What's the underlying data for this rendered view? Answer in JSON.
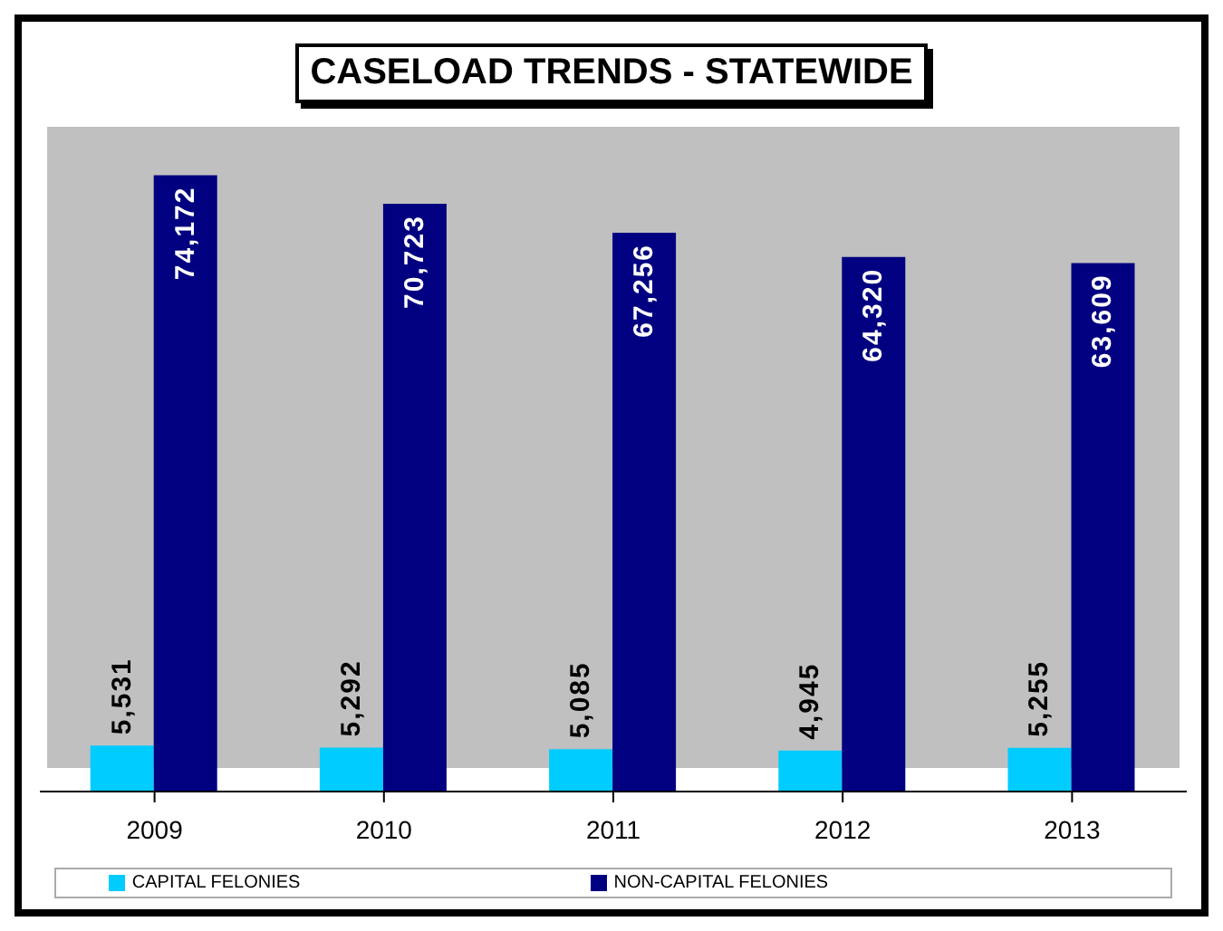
{
  "chart_data": {
    "type": "bar",
    "title": "CASELOAD TRENDS - STATEWIDE",
    "categories": [
      "2009",
      "2010",
      "2011",
      "2012",
      "2013"
    ],
    "series": [
      {
        "name": "CAPITAL FELONIES",
        "color": "#00ccff",
        "values": [
          5531,
          5292,
          5085,
          4945,
          5255
        ],
        "value_labels": [
          "5,531",
          "5,292",
          "5,085",
          "4,945",
          "5,255"
        ]
      },
      {
        "name": "NON-CAPITAL FELONIES",
        "color": "#000080",
        "values": [
          74172,
          70723,
          67256,
          64320,
          63609
        ],
        "value_labels": [
          "74,172",
          "70,723",
          "67,256",
          "64,320",
          "63,609"
        ]
      }
    ],
    "legend": "bottom"
  }
}
